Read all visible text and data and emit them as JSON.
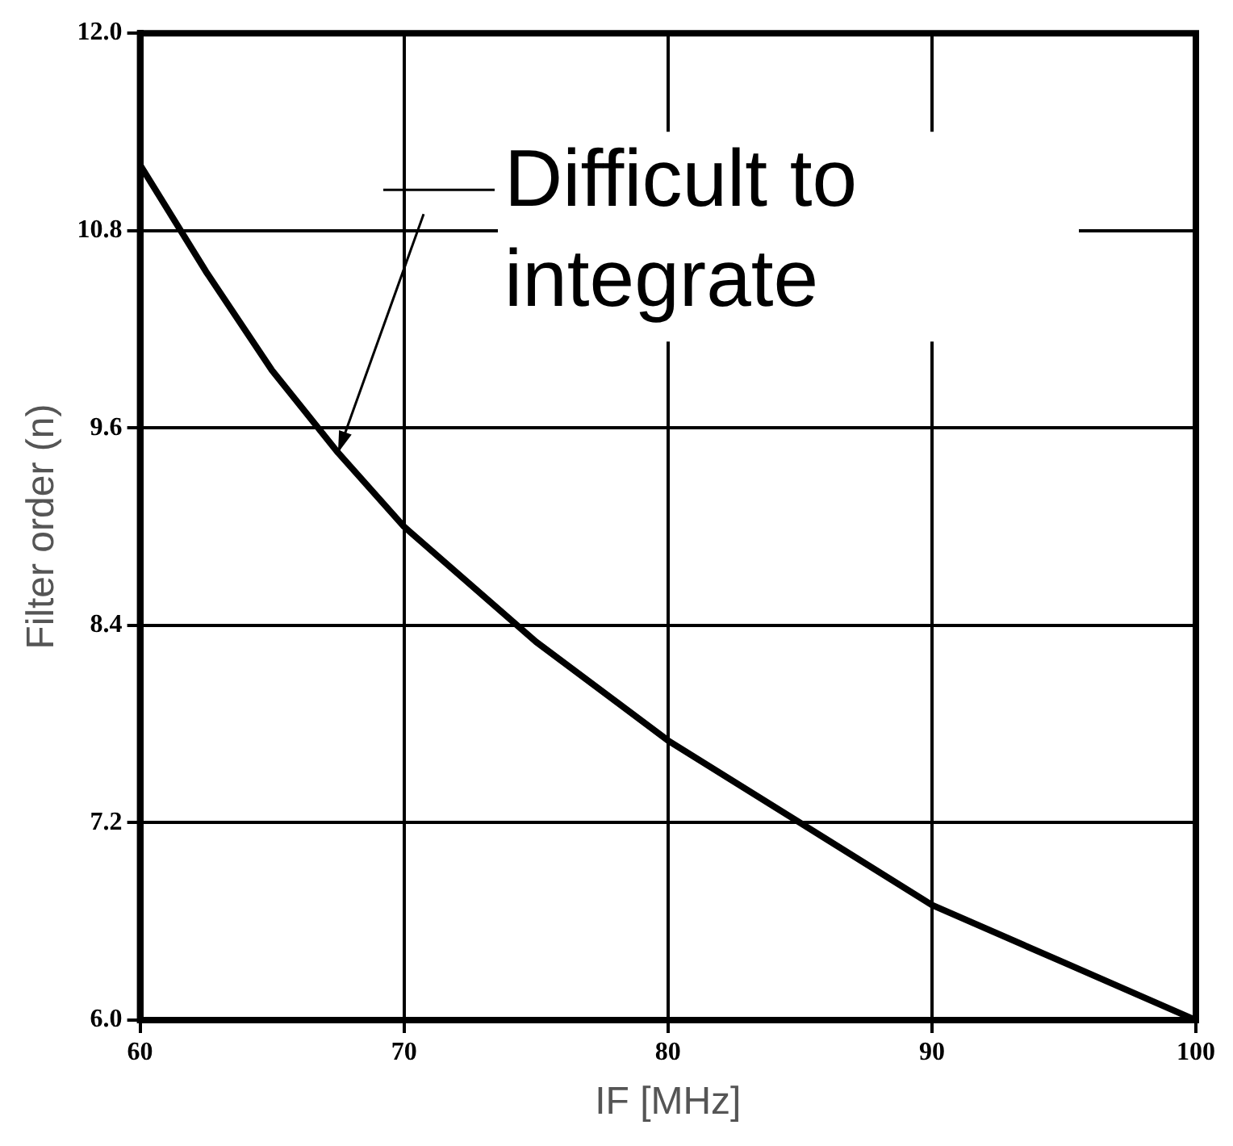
{
  "chart_data": {
    "type": "line",
    "xlabel": "IF [MHz]",
    "ylabel": "Filter order (n)",
    "x": [
      60,
      62.5,
      65,
      67.5,
      70,
      75,
      80,
      85,
      90,
      95,
      100
    ],
    "series": [
      {
        "color": "#000000",
        "values": [
          11.2,
          10.55,
          9.95,
          9.45,
          9.0,
          8.3,
          7.7,
          7.2,
          6.7,
          6.35,
          6.0
        ]
      }
    ],
    "xlim": [
      60,
      100
    ],
    "xticks": [
      60,
      70,
      80,
      90,
      100
    ],
    "ylim": [
      6,
      12
    ],
    "yticks": [
      {
        "value": 6,
        "label": "6.0"
      },
      7.2,
      8.4,
      9.6,
      10.8,
      {
        "value": 12,
        "label": "12.0"
      }
    ],
    "grid": true,
    "marker": "none",
    "line_style": "solid",
    "legend": false,
    "annotations": [
      {
        "text": "Difficult to integrate",
        "x": 67.5,
        "y": 9.45
      }
    ]
  }
}
